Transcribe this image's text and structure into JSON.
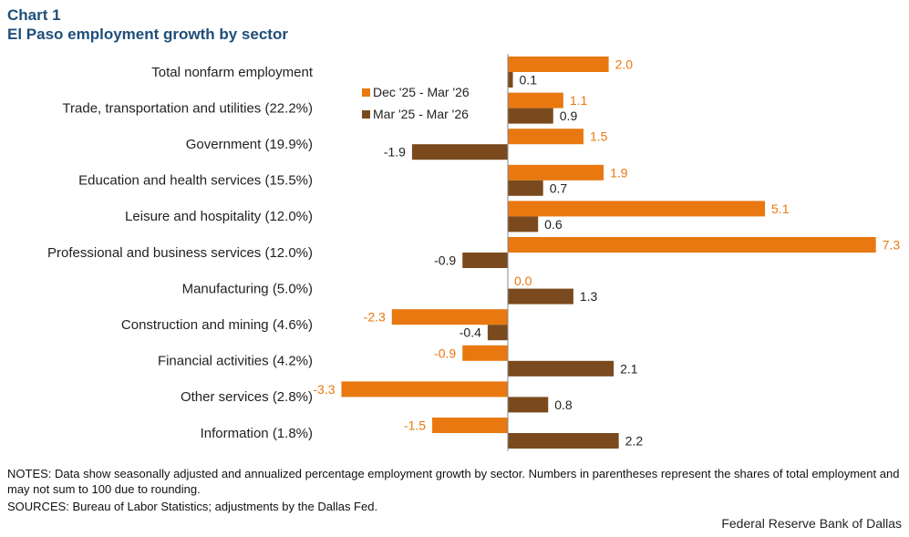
{
  "header": {
    "chart_label": "Chart 1",
    "title": "El Paso employment growth by sector"
  },
  "chart_data": {
    "type": "bar",
    "orientation": "horizontal",
    "categories": [
      "Total nonfarm employment",
      "Trade, transportation and utilities (22.2%)",
      "Government (19.9%)",
      "Education and health services (15.5%)",
      "Leisure and hospitality (12.0%)",
      "Professional and business services (12.0%)",
      "Manufacturing (5.0%)",
      "Construction and mining (4.6%)",
      "Financial activities (4.2%)",
      "Other services (2.8%)",
      "Information (1.8%)"
    ],
    "series": [
      {
        "name": "Dec '25 - Mar '26",
        "color": "#e8780f",
        "values": [
          2.0,
          1.1,
          1.5,
          1.9,
          5.1,
          7.3,
          0.0,
          -2.3,
          -0.9,
          -3.3,
          -1.5
        ],
        "labels": [
          "2.0",
          "1.1",
          "1.5",
          "1.9",
          "5.1",
          "7.3",
          "0.0",
          "-2.3",
          "-0.9",
          "-3.3",
          "-1.5"
        ]
      },
      {
        "name": "Mar '25 - Mar '26",
        "color": "#7a4a1e",
        "values": [
          0.1,
          0.9,
          -1.9,
          0.7,
          0.6,
          -0.9,
          1.3,
          -0.4,
          2.1,
          0.8,
          2.2
        ],
        "labels": [
          "0.1",
          "0.9",
          "-1.9",
          "0.7",
          "0.6",
          "-0.9",
          "1.3",
          "-0.4",
          "2.1",
          "0.8",
          "2.2"
        ]
      }
    ],
    "legend_position": "top-left of plot",
    "grid": false,
    "xlim": [
      -3.9,
      7.6
    ]
  },
  "notes": "NOTES: Data show seasonally adjusted and annualized percentage employment growth by sector. Numbers in parentheses represent the shares of total employment and may not sum to 100 due to rounding.",
  "sources": "SOURCES: Bureau of Labor Statistics; adjustments by the Dallas Fed.",
  "footer": "Federal Reserve Bank of Dallas"
}
